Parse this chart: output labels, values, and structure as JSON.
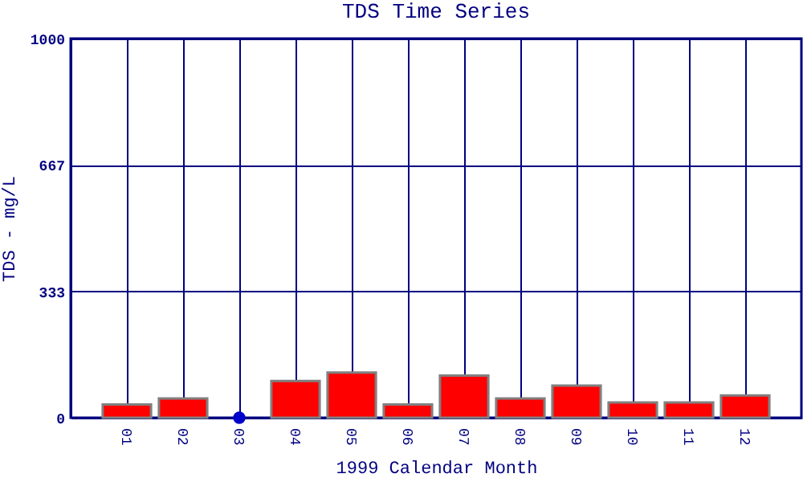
{
  "chart_data": {
    "type": "bar",
    "title": "TDS Time Series",
    "xlabel": "1999 Calendar Month",
    "ylabel": "TDS - mg/L",
    "categories": [
      "01",
      "02",
      "03",
      "04",
      "05",
      "06",
      "07",
      "08",
      "09",
      "10",
      "11",
      "12"
    ],
    "series": [
      {
        "color": "#ff0000",
        "values": [
          35,
          51,
          null,
          97,
          119,
          35,
          111,
          51,
          85,
          40,
          40,
          59
        ]
      },
      {
        "type": "scatter",
        "color": "#0000cc",
        "x": [
          "03"
        ],
        "values": [
          0
        ]
      }
    ],
    "marker": "circle",
    "ylim": [
      0,
      1000
    ],
    "yticks": [
      0,
      333,
      667,
      1000
    ],
    "grid": true
  }
}
